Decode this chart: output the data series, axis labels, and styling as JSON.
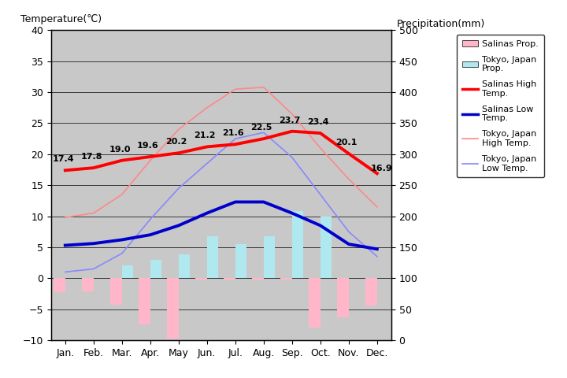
{
  "months": [
    "Jan.",
    "Feb.",
    "Mar.",
    "Apr.",
    "May",
    "Jun.",
    "Jul.",
    "Aug.",
    "Sep.",
    "Oct.",
    "Nov.",
    "Dec."
  ],
  "salinas_high": [
    17.4,
    17.8,
    19.0,
    19.6,
    20.2,
    21.2,
    21.6,
    22.5,
    23.7,
    23.4,
    20.1,
    16.9
  ],
  "salinas_low": [
    5.3,
    5.6,
    6.2,
    7.0,
    8.5,
    10.5,
    12.3,
    12.3,
    10.5,
    8.5,
    5.5,
    4.7
  ],
  "tokyo_high": [
    9.8,
    10.5,
    13.5,
    19.0,
    24.0,
    27.5,
    30.5,
    30.8,
    26.5,
    21.0,
    16.0,
    11.5
  ],
  "tokyo_low": [
    1.0,
    1.5,
    4.0,
    9.5,
    14.5,
    18.5,
    22.5,
    23.5,
    19.5,
    13.5,
    7.5,
    3.5
  ],
  "salinas_high_labels": [
    "17.4",
    "17.8",
    "19.0",
    "19.6",
    "20.2",
    "21.2",
    "21.6",
    "22.5",
    "23.7",
    "23.4",
    "20.1",
    "16.9"
  ],
  "tokyo_prcp_on_temp": [
    0,
    0,
    2.1,
    2.9,
    3.8,
    6.8,
    5.5,
    6.8,
    10.8,
    10.0,
    0.0,
    0
  ],
  "salinas_prcp_on_temp": [
    -2.3,
    -2.1,
    -4.3,
    -7.5,
    -9.8,
    -0.2,
    -0.2,
    -0.2,
    -0.2,
    -8.0,
    -6.3,
    -4.4
  ],
  "temp_ylim": [
    -10,
    40
  ],
  "prcp_ylim": [
    0,
    500
  ],
  "background_color": "#c8c8c8",
  "salinas_high_color": "#ff0000",
  "salinas_low_color": "#0000cc",
  "tokyo_high_color": "#ff8888",
  "tokyo_low_color": "#8888ff",
  "salinas_prcp_color": "#ffb6c8",
  "tokyo_prcp_color": "#b0e8f0",
  "title_left": "Temperature(℃)",
  "title_right": "Precipitation(mm)",
  "legend_labels": [
    "Salinas Prop.",
    "Tokyo, Japan\nProp.",
    "Salinas High\nTemp.",
    "Salinas Low\nTemp.",
    "Tokyo, Japan\nHigh Temp.",
    "Tokyo, Japan\nLow Temp."
  ]
}
